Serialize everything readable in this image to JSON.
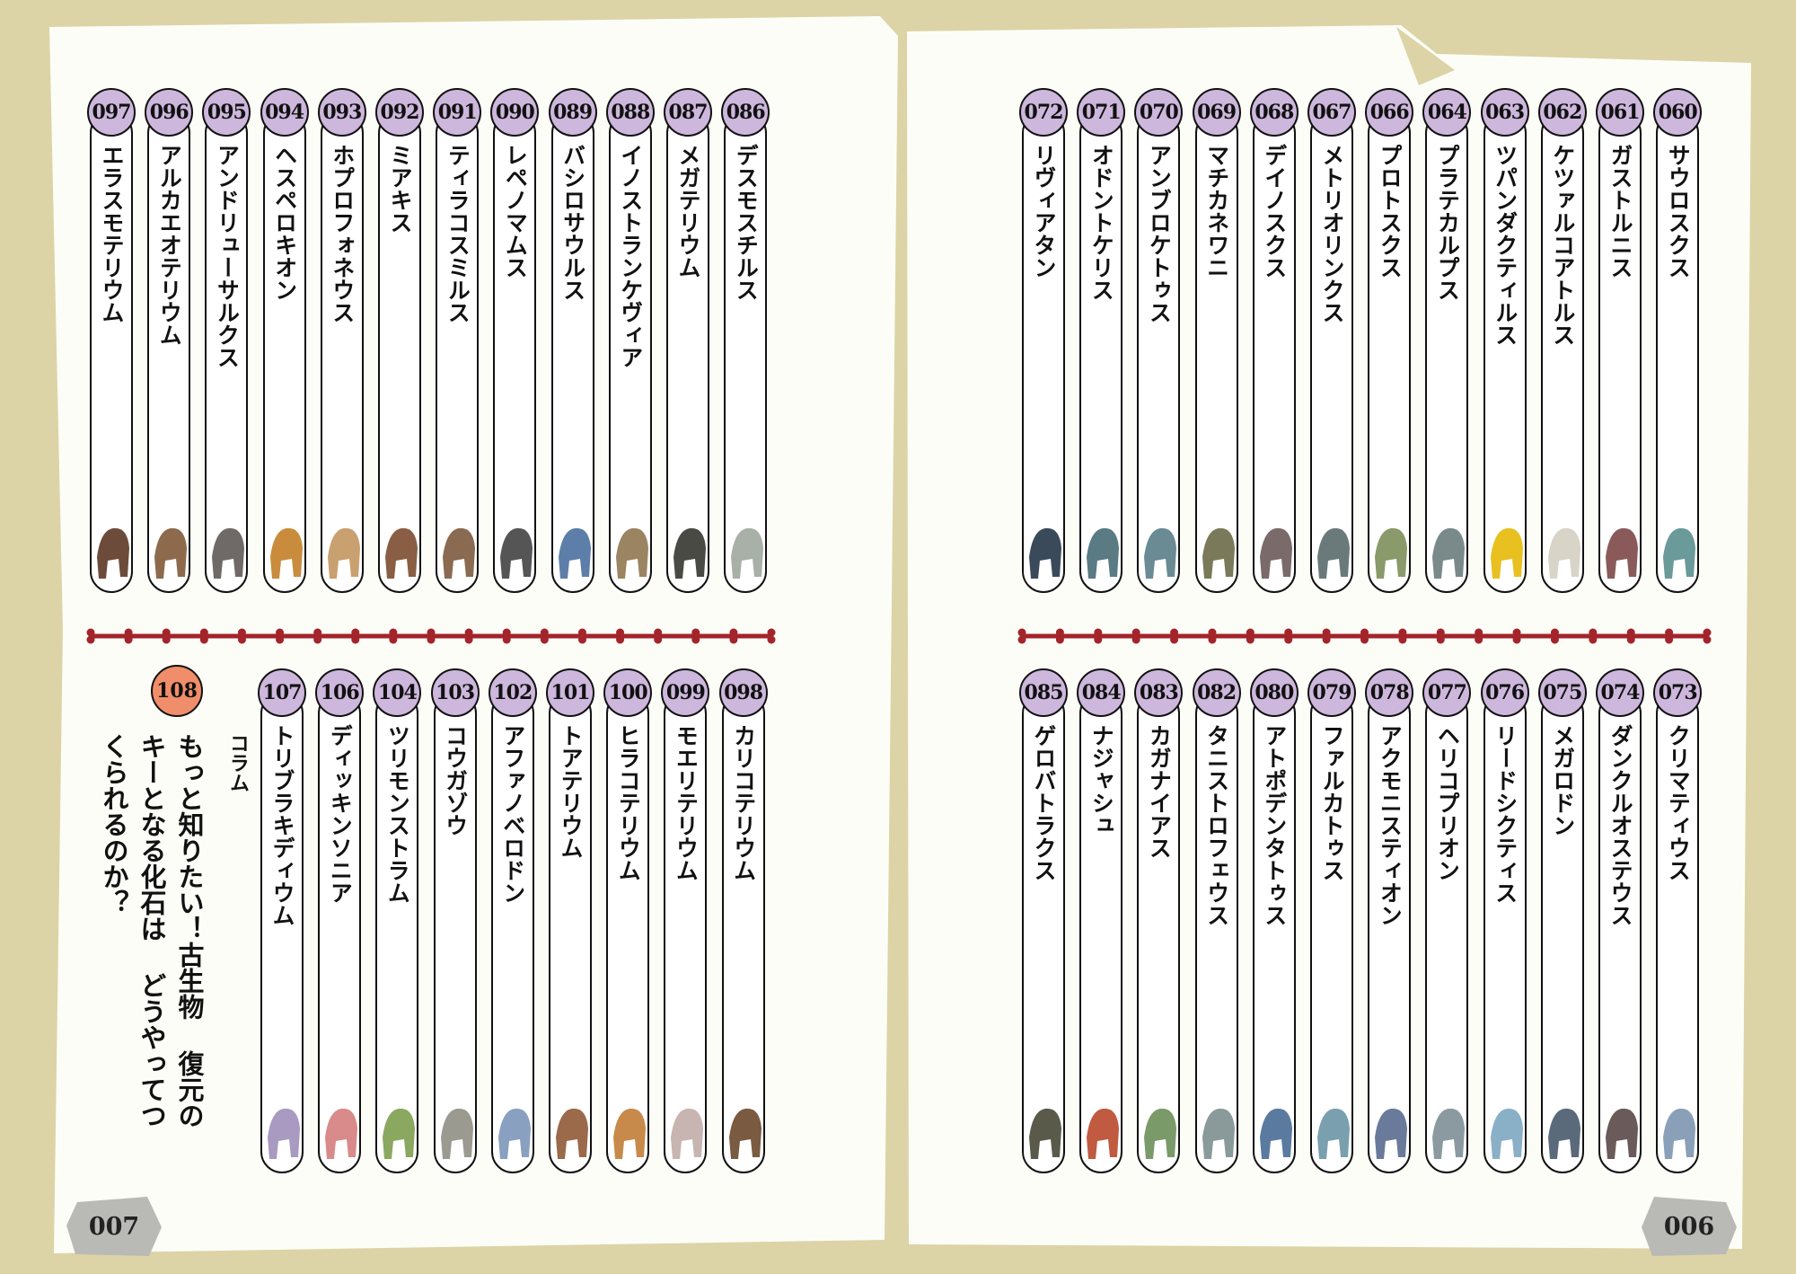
{
  "left_page": {
    "top_row": [
      {
        "num": "097",
        "name": "エラスモテリウム",
        "color": "#6d4b3a"
      },
      {
        "num": "096",
        "name": "アルカエオテリウム",
        "color": "#8e6a4c"
      },
      {
        "num": "095",
        "name": "アンドリューサルクス",
        "color": "#6f6a68"
      },
      {
        "num": "094",
        "name": "ヘスペロキオン",
        "color": "#c88c3c"
      },
      {
        "num": "093",
        "name": "ホプロフォネウス",
        "color": "#c9a070"
      },
      {
        "num": "092",
        "name": "ミアキス",
        "color": "#8a5e44"
      },
      {
        "num": "091",
        "name": "ティラコスミルス",
        "color": "#8a6a50"
      },
      {
        "num": "090",
        "name": "レペノマムス",
        "color": "#555"
      },
      {
        "num": "089",
        "name": "バシロサウルス",
        "color": "#5d7ea8"
      },
      {
        "num": "088",
        "name": "イノストランケヴィア",
        "color": "#9a8462"
      },
      {
        "num": "087",
        "name": "メガテリウム",
        "color": "#4a4a44"
      },
      {
        "num": "086",
        "name": "デスモスチルス",
        "color": "#a8b0a8"
      }
    ],
    "bottom_row": [
      {
        "num": "107",
        "name": "トリブラキディウム",
        "color": "#a89ac0"
      },
      {
        "num": "106",
        "name": "ディッキンソニア",
        "color": "#d98a8a"
      },
      {
        "num": "104",
        "name": "ツリモンストラム",
        "color": "#8aa860"
      },
      {
        "num": "103",
        "name": "コウガゾウ",
        "color": "#9a9a90"
      },
      {
        "num": "102",
        "name": "アファノベロドン",
        "color": "#8aa0c0"
      },
      {
        "num": "101",
        "name": "トアテリウム",
        "color": "#9a6a4a"
      },
      {
        "num": "100",
        "name": "ヒラコテリウム",
        "color": "#c88a4a"
      },
      {
        "num": "099",
        "name": "モエリテリウム",
        "color": "#c8b4b0"
      },
      {
        "num": "098",
        "name": "カリコテリウム",
        "color": "#7a5a40"
      }
    ],
    "column": {
      "num": "108",
      "label": "コラム",
      "text": "もっと知りたい！古生物 復元のキーとなる化石は どうやってつくられるのか？"
    },
    "page_number": "007"
  },
  "right_page": {
    "top_row": [
      {
        "num": "072",
        "name": "リヴィアタン",
        "color": "#3a4a5a"
      },
      {
        "num": "071",
        "name": "オドントケリス",
        "color": "#5a7a84"
      },
      {
        "num": "070",
        "name": "アンブロケトゥス",
        "color": "#6a8a94"
      },
      {
        "num": "069",
        "name": "マチカネワニ",
        "color": "#7a7a5a"
      },
      {
        "num": "068",
        "name": "デイノスクス",
        "color": "#7a6a6a"
      },
      {
        "num": "067",
        "name": "メトリオリンクス",
        "color": "#6a7a7a"
      },
      {
        "num": "066",
        "name": "プロトスクス",
        "color": "#8a9a6a"
      },
      {
        "num": "064",
        "name": "プラテカルプス",
        "color": "#7a8a8a"
      },
      {
        "num": "063",
        "name": "ツパンダクティルス",
        "color": "#e8c020"
      },
      {
        "num": "062",
        "name": "ケツァルコアトルス",
        "color": "#d8d4c8"
      },
      {
        "num": "061",
        "name": "ガストルニス",
        "color": "#8a5a5a"
      },
      {
        "num": "060",
        "name": "サウロスクス",
        "color": "#6a9a9a"
      }
    ],
    "bottom_row": [
      {
        "num": "085",
        "name": "ゲロバトラクス",
        "color": "#5a5a4a"
      },
      {
        "num": "084",
        "name": "ナジャシュ",
        "color": "#c05a40"
      },
      {
        "num": "083",
        "name": "カガナイアス",
        "color": "#7a9a6a"
      },
      {
        "num": "082",
        "name": "タニストロフェウス",
        "color": "#8a9a9a"
      },
      {
        "num": "080",
        "name": "アトポデンタトゥス",
        "color": "#5a7aa0"
      },
      {
        "num": "079",
        "name": "ファルカトゥス",
        "color": "#7aa0b0"
      },
      {
        "num": "078",
        "name": "アクモニスティオン",
        "color": "#6a7a9a"
      },
      {
        "num": "077",
        "name": "ヘリコプリオン",
        "color": "#8a9aa0"
      },
      {
        "num": "076",
        "name": "リードシクティス",
        "color": "#8ab0c8"
      },
      {
        "num": "075",
        "name": "メガロドン",
        "color": "#5a6a7a"
      },
      {
        "num": "074",
        "name": "ダンクルオステウス",
        "color": "#6a5a5a"
      },
      {
        "num": "073",
        "name": "クリマティウス",
        "color": "#8aa0b8"
      }
    ],
    "page_number": "006"
  }
}
